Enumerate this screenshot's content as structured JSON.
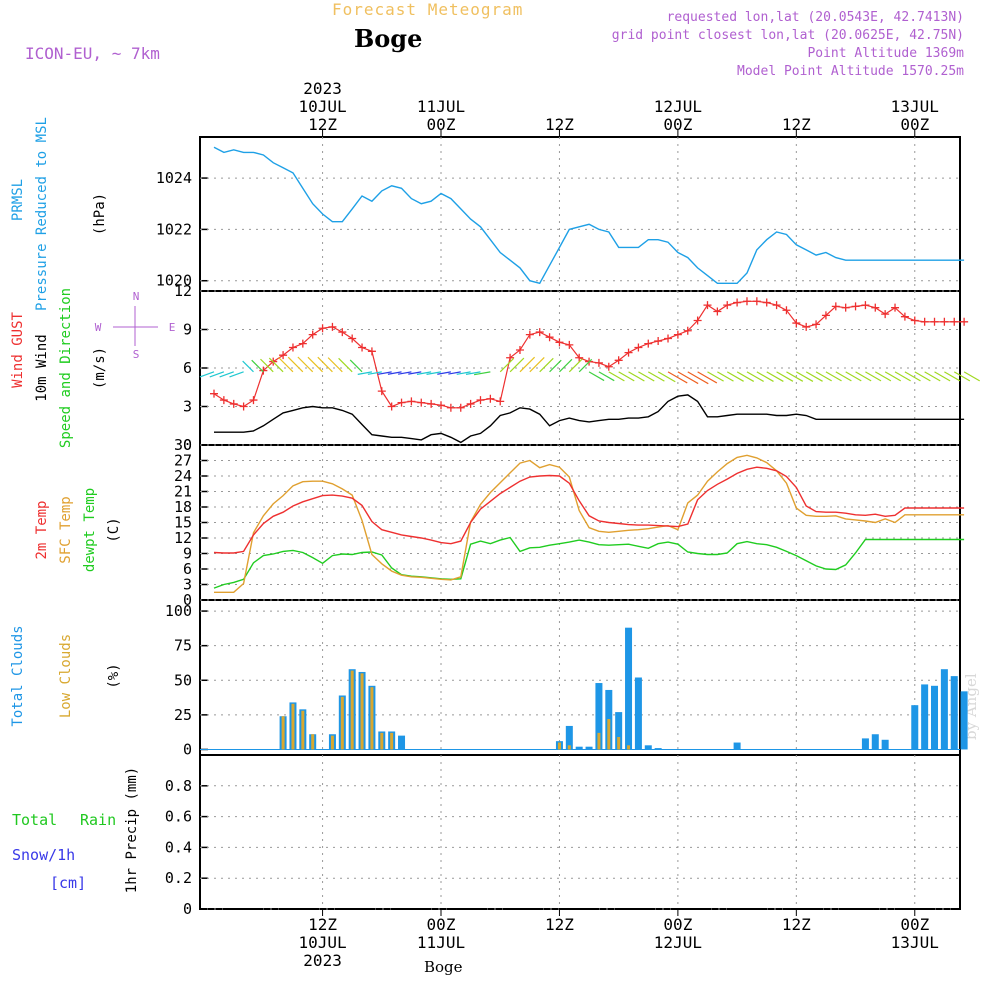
{
  "header": {
    "super_title": "Forecast Meteogram",
    "title": "Boge",
    "model": "ICON-EU, ~ 7km",
    "requested": "requested lon,lat (20.0543E, 42.7413N)",
    "grid_point": "grid point closest lon,lat (20.0625E, 42.75N)",
    "point_altitude": "Point Altitude 1369m",
    "model_altitude": "Model Point Altitude 1570.25m",
    "bottom_label": "Boge",
    "watermark": "by Angel"
  },
  "colors": {
    "pressure": "#1ea0e6",
    "gust": "#ee3030",
    "wind": "#000000",
    "temp2m": "#ee3030",
    "sfc": "#e0a030",
    "dewpt": "#20cc20",
    "total_cloud": "#1e96e6",
    "low_cloud": "#d8a830",
    "rain": "#20c820",
    "snow": "#3838e8",
    "label_purple": "#b060d0"
  },
  "chart_data": {
    "time_start_hours": 0,
    "time_end_hours": 77,
    "top_axis": [
      {
        "h": 11,
        "lines": [
          "2023",
          "10JUL",
          "12Z"
        ]
      },
      {
        "h": 23,
        "lines": [
          "11JUL",
          "00Z"
        ]
      },
      {
        "h": 35,
        "lines": [
          "12Z"
        ]
      },
      {
        "h": 47,
        "lines": [
          "12JUL",
          "00Z"
        ]
      },
      {
        "h": 59,
        "lines": [
          "12Z"
        ]
      },
      {
        "h": 71,
        "lines": [
          "13JUL",
          "00Z"
        ]
      }
    ],
    "bottom_axis": [
      {
        "h": 11,
        "lines": [
          "12Z",
          "10JUL",
          "2023"
        ]
      },
      {
        "h": 23,
        "lines": [
          "00Z",
          "11JUL"
        ]
      },
      {
        "h": 35,
        "lines": [
          "12Z"
        ]
      },
      {
        "h": 47,
        "lines": [
          "00Z",
          "12JUL"
        ]
      },
      {
        "h": 59,
        "lines": [
          "12Z"
        ]
      },
      {
        "h": 71,
        "lines": [
          "00Z",
          "13JUL"
        ]
      }
    ],
    "pressure": {
      "labels": [
        "PRMSL",
        "Pressure Reduced to MSL",
        "(hPa)"
      ],
      "ylim": [
        1019.6,
        1025.6
      ],
      "ticks": [
        1020,
        1022,
        1024
      ],
      "x": [
        0,
        1,
        2,
        3,
        4,
        5,
        6,
        7,
        8,
        9,
        10,
        11,
        12,
        13,
        14,
        15,
        16,
        17,
        18,
        19,
        20,
        21,
        22,
        23,
        24,
        25,
        26,
        27,
        28,
        29,
        30,
        31,
        32,
        33,
        34,
        35,
        36,
        37,
        38,
        39,
        40,
        41,
        42,
        43,
        44,
        45,
        46,
        47,
        48,
        49,
        50,
        51,
        52,
        53,
        54,
        55,
        56,
        57,
        58,
        59,
        60,
        61,
        62,
        63,
        64,
        65,
        66,
        67,
        68,
        69,
        70,
        71,
        72,
        73,
        74,
        75,
        76
      ],
      "y": [
        1025.2,
        1025.0,
        1025.1,
        1025.0,
        1025.0,
        1024.9,
        1024.6,
        1024.4,
        1024.2,
        1023.6,
        1023.0,
        1022.6,
        1022.3,
        1022.3,
        1022.8,
        1023.3,
        1023.1,
        1023.5,
        1023.7,
        1023.6,
        1023.2,
        1023.0,
        1023.1,
        1023.4,
        1023.2,
        1022.8,
        1022.4,
        1022.1,
        1021.6,
        1021.1,
        1020.8,
        1020.5,
        1020.0,
        1019.9,
        1020.6,
        1021.3,
        1022.0,
        1022.1,
        1022.2,
        1022.0,
        1021.9,
        1021.3,
        1021.3,
        1021.3,
        1021.6,
        1021.6,
        1021.5,
        1021.1,
        1020.9,
        1020.5,
        1020.2,
        1019.9,
        1019.9,
        1019.9,
        1020.3,
        1021.2,
        1021.6,
        1021.9,
        1021.8,
        1021.4,
        1021.2,
        1021.0,
        1021.1,
        1020.9,
        1020.8,
        1020.8,
        1020.8,
        1020.8,
        1020.8,
        1020.8,
        1020.8,
        1020.8,
        1020.8,
        1020.8,
        1020.8,
        1020.8,
        1020.8
      ]
    },
    "wind": {
      "labels": [
        "Wind GUST",
        "10m Wind",
        "Speed and Direction",
        "(m/s)"
      ],
      "compass": [
        "N",
        "S",
        "W",
        "E"
      ],
      "ylim": [
        0,
        12
      ],
      "ticks": [
        0,
        3,
        6,
        9,
        12
      ],
      "gust": [
        4.0,
        3.5,
        3.2,
        3.0,
        3.5,
        5.8,
        6.5,
        7.0,
        7.6,
        7.9,
        8.6,
        9.1,
        9.2,
        8.8,
        8.3,
        7.6,
        7.3,
        4.2,
        3.0,
        3.3,
        3.4,
        3.3,
        3.2,
        3.1,
        2.9,
        2.9,
        3.2,
        3.5,
        3.6,
        3.4,
        6.8,
        7.4,
        8.6,
        8.8,
        8.4,
        8.0,
        7.8,
        6.8,
        6.5,
        6.4,
        6.1,
        6.6,
        7.2,
        7.6,
        7.9,
        8.1,
        8.3,
        8.6,
        8.9,
        9.7,
        10.9,
        10.4,
        10.9,
        11.1,
        11.2,
        11.2,
        11.1,
        10.9,
        10.5,
        9.5,
        9.2,
        9.4,
        10.1,
        10.8,
        10.7,
        10.8,
        10.9,
        10.7,
        10.2,
        10.7,
        10.0,
        9.7,
        9.6,
        9.6,
        9.6,
        9.6,
        9.6
      ],
      "speed": [
        1.0,
        1.0,
        1.0,
        1.0,
        1.1,
        1.5,
        2.0,
        2.5,
        2.7,
        2.9,
        3.0,
        2.9,
        2.9,
        2.7,
        2.4,
        1.6,
        0.8,
        0.7,
        0.6,
        0.6,
        0.5,
        0.4,
        0.8,
        0.9,
        0.6,
        0.2,
        0.7,
        0.9,
        1.5,
        2.3,
        2.5,
        2.9,
        2.8,
        2.4,
        1.5,
        1.9,
        2.1,
        1.9,
        1.8,
        1.9,
        2.0,
        2.0,
        2.1,
        2.1,
        2.2,
        2.6,
        3.4,
        3.8,
        3.9,
        3.4,
        2.2,
        2.2,
        2.3,
        2.4,
        2.4,
        2.4,
        2.4,
        2.3,
        2.3,
        2.4,
        2.3,
        2.0,
        2.0,
        2.0,
        2.0,
        2.0,
        2.0,
        2.0,
        2.0,
        2.0,
        2.0,
        2.0,
        2.0,
        2.0,
        2.0,
        2.0,
        2.0
      ]
    },
    "temp": {
      "labels": [
        "2m Temp",
        "SFC Temp",
        "dewpt Temp",
        "(C)"
      ],
      "ylim": [
        0,
        30
      ],
      "ticks": [
        0,
        3,
        6,
        9,
        12,
        15,
        18,
        21,
        24,
        27,
        30
      ],
      "t2m": [
        9.2,
        9.1,
        9.1,
        9.4,
        12.6,
        14.8,
        16.2,
        17.0,
        18.2,
        19.0,
        19.6,
        20.2,
        20.3,
        20.1,
        19.7,
        18.3,
        15.2,
        13.6,
        13.1,
        12.6,
        12.3,
        12.0,
        11.6,
        11.1,
        10.9,
        11.4,
        15.0,
        17.6,
        19.1,
        20.6,
        21.8,
        23.0,
        23.8,
        24.0,
        24.1,
        24.0,
        22.6,
        19.2,
        16.3,
        15.3,
        15.0,
        14.8,
        14.6,
        14.5,
        14.5,
        14.4,
        14.3,
        14.2,
        14.7,
        19.4,
        21.2,
        22.4,
        23.4,
        24.5,
        25.3,
        25.7,
        25.5,
        25.0,
        23.9,
        21.8,
        18.2,
        17.1,
        17.0,
        17.0,
        16.8,
        16.5,
        16.4,
        16.6,
        16.2,
        16.4,
        17.8,
        17.8,
        17.8,
        17.8,
        17.8,
        17.8,
        17.8
      ],
      "sfc": [
        1.5,
        1.5,
        1.5,
        3.2,
        13.0,
        16.3,
        18.6,
        20.2,
        22.1,
        22.9,
        23.0,
        23.0,
        22.5,
        21.5,
        20.3,
        15.4,
        8.8,
        7.0,
        5.6,
        4.8,
        4.5,
        4.4,
        4.2,
        4.0,
        3.9,
        4.5,
        15.1,
        18.5,
        20.8,
        22.7,
        24.6,
        26.5,
        27.0,
        25.6,
        26.2,
        25.7,
        23.8,
        17.3,
        14.0,
        13.3,
        13.1,
        13.3,
        13.5,
        13.6,
        13.8,
        14.1,
        14.4,
        13.6,
        18.8,
        20.3,
        23.0,
        24.8,
        26.4,
        27.6,
        28.0,
        27.5,
        26.6,
        25.0,
        22.6,
        17.8,
        16.4,
        16.2,
        16.2,
        16.3,
        15.7,
        15.5,
        15.3,
        15.0,
        15.7,
        15.0,
        16.5,
        16.5,
        16.5,
        16.5,
        16.5,
        16.5,
        16.5
      ],
      "dewpt": [
        2.3,
        3.0,
        3.4,
        4.0,
        7.2,
        8.6,
        8.9,
        9.4,
        9.6,
        9.2,
        8.2,
        7.1,
        8.6,
        8.9,
        8.8,
        9.2,
        9.3,
        8.7,
        6.2,
        4.9,
        4.6,
        4.5,
        4.3,
        4.1,
        4.0,
        4.1,
        10.8,
        11.4,
        10.9,
        11.6,
        12.1,
        9.4,
        10.1,
        10.2,
        10.6,
        10.9,
        11.2,
        11.6,
        11.2,
        10.7,
        10.6,
        10.7,
        10.8,
        10.4,
        10.0,
        10.9,
        11.2,
        10.8,
        9.3,
        9.0,
        8.8,
        8.8,
        9.1,
        10.9,
        11.3,
        10.9,
        10.7,
        10.2,
        9.4,
        8.6,
        7.6,
        6.6,
        6.0,
        5.9,
        6.8,
        9.1,
        11.7,
        11.7,
        11.7,
        11.7,
        11.7,
        11.7,
        11.7,
        11.7,
        11.7,
        11.7,
        11.7
      ]
    },
    "clouds": {
      "labels": [
        "Total Clouds",
        "Low Clouds",
        "(%)"
      ],
      "ylim": [
        -4,
        108
      ],
      "ticks": [
        0,
        25,
        50,
        75,
        100
      ],
      "total": [
        [
          7,
          24
        ],
        [
          8,
          34
        ],
        [
          9,
          29
        ],
        [
          10,
          11
        ],
        [
          12,
          11
        ],
        [
          13,
          39
        ],
        [
          14,
          58
        ],
        [
          15,
          56
        ],
        [
          16,
          46
        ],
        [
          17,
          13
        ],
        [
          18,
          13
        ],
        [
          19,
          10
        ],
        [
          35,
          6
        ],
        [
          36,
          17
        ],
        [
          37,
          2
        ],
        [
          38,
          2
        ],
        [
          39,
          48
        ],
        [
          40,
          43
        ],
        [
          41,
          27
        ],
        [
          42,
          88
        ],
        [
          43,
          52
        ],
        [
          44,
          3
        ],
        [
          45,
          1
        ],
        [
          53,
          5
        ],
        [
          66,
          8
        ],
        [
          67,
          11
        ],
        [
          68,
          7
        ],
        [
          71,
          32
        ],
        [
          72,
          47
        ],
        [
          73,
          46
        ],
        [
          74,
          58
        ],
        [
          75,
          53
        ],
        [
          76,
          42
        ]
      ],
      "low": [
        [
          7,
          24
        ],
        [
          8,
          33
        ],
        [
          9,
          28
        ],
        [
          10,
          11
        ],
        [
          12,
          10
        ],
        [
          13,
          38
        ],
        [
          14,
          57
        ],
        [
          15,
          55
        ],
        [
          16,
          45
        ],
        [
          17,
          12
        ],
        [
          18,
          12
        ],
        [
          35,
          5
        ],
        [
          36,
          3
        ],
        [
          39,
          12
        ],
        [
          40,
          22
        ],
        [
          41,
          9
        ],
        [
          42,
          3
        ]
      ]
    },
    "precip": {
      "labels": [
        "Total",
        "Rain",
        "Snow/1h",
        "[cm]",
        "1hr Precip (mm)"
      ],
      "ylim": [
        0,
        1.0
      ],
      "ticks": [
        0,
        0.2,
        0.4,
        0.6,
        0.8
      ],
      "tick_labels": [
        "0",
        "0.2",
        "0.4",
        "0.6",
        "0.8"
      ],
      "rain": [],
      "snow": []
    }
  }
}
